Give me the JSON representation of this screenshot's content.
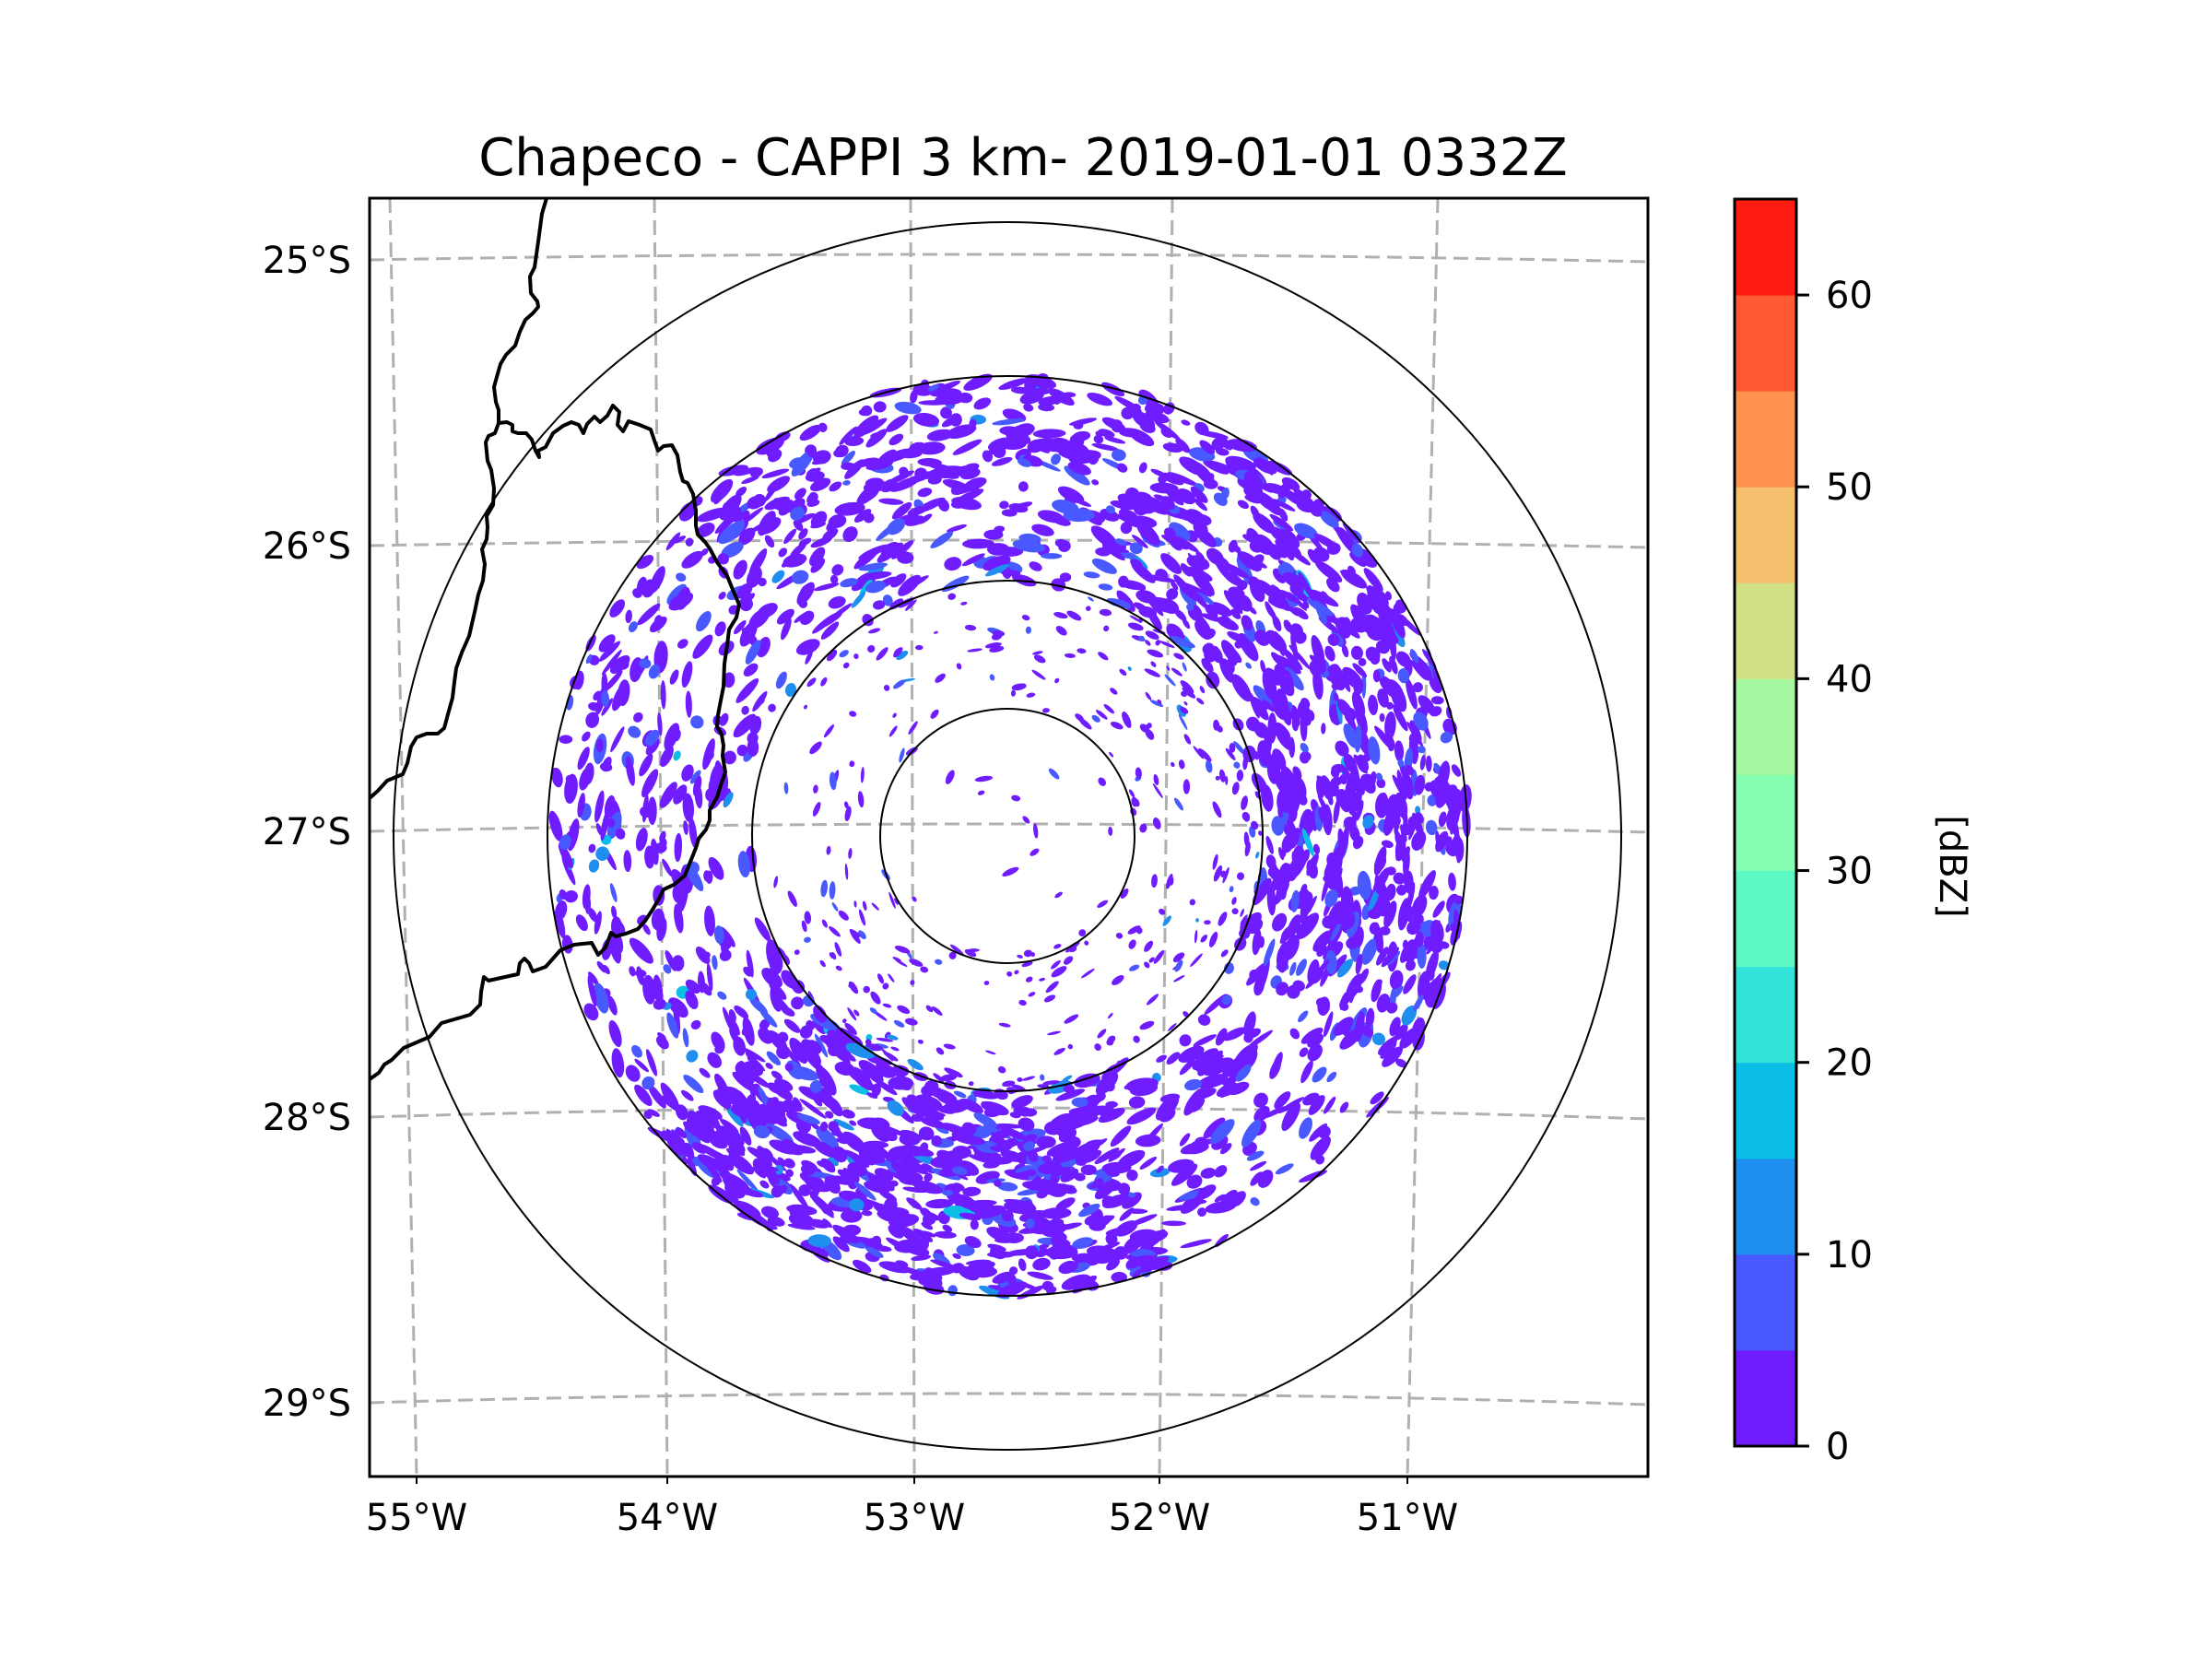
{
  "figure": {
    "title": "Chapeco - CAPPI 3 km- 2019-01-01 0332Z"
  },
  "chart_data": {
    "type": "heatmap",
    "title": "Chapeco - CAPPI 3 km- 2019-01-01 0332Z",
    "product": "CAPPI",
    "altitude": "3 km",
    "radar_site": "Chapeco",
    "datetime": "2019-01-01 0332Z",
    "xlabel": "",
    "ylabel": "",
    "x_ticks": [
      "55°W",
      "54°W",
      "53°W",
      "52°W",
      "51°W"
    ],
    "y_ticks": [
      "25°S",
      "26°S",
      "27°S",
      "28°S",
      "29°S"
    ],
    "lon_range": [
      -55.2,
      -50.1
    ],
    "lat_range": [
      -29.3,
      -24.8
    ],
    "grid": true,
    "range_rings": 4,
    "radar_center": {
      "lon": -52.6,
      "lat": -27.03
    },
    "echo_summary": {
      "dominant_band": "0-5 dBZ",
      "secondary_band": "5-10 dBZ",
      "max_observed_band": "15-20 dBZ",
      "densest_regions": [
        "southwest arc of third ring",
        "east / northeast sector"
      ],
      "coverage_radius_ring": 3
    },
    "colorbar": {
      "label": "[dBZ]",
      "min": 0,
      "max": 65,
      "ticks": [
        "0",
        "10",
        "20",
        "30",
        "40",
        "50",
        "60"
      ],
      "levels": [
        0,
        5,
        10,
        15,
        20,
        25,
        30,
        35,
        40,
        45,
        50,
        55,
        60,
        65
      ],
      "colors": [
        "#6f1cff",
        "#485aff",
        "#1f8fef",
        "#0abee6",
        "#33e3d9",
        "#5ef9c6",
        "#84ffb2",
        "#a5f89f",
        "#d0e185",
        "#f4c06e",
        "#ff9250",
        "#ff5a32",
        "#ff1c12"
      ]
    },
    "borders": "state/country boundary lines in northwest (Argentina–Brazil frontier)"
  }
}
